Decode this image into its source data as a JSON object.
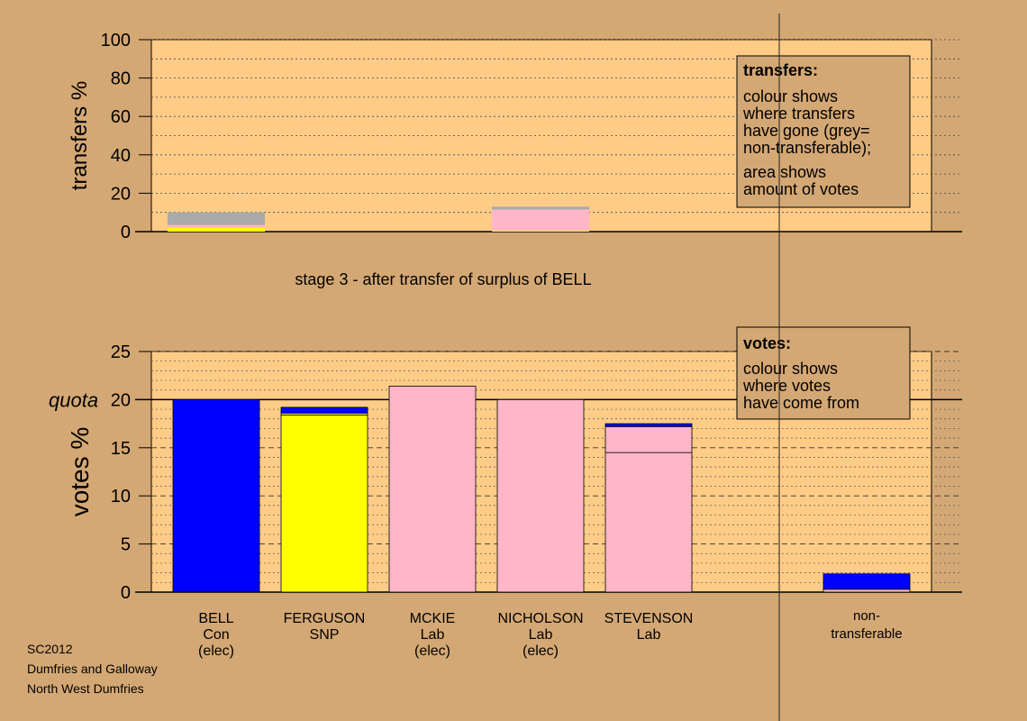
{
  "chart_data": [
    {
      "type": "bar",
      "stacked": true,
      "title": "stage 3 - after transfer of surplus of BELL",
      "ylabel": "transfers %",
      "ylim": [
        0,
        100
      ],
      "yticks": [
        0,
        20,
        40,
        60,
        80,
        100
      ],
      "categories": [
        "BELL",
        "MCKIE"
      ],
      "series": [
        {
          "color": "#ffff00",
          "values": [
            2,
            0.5
          ]
        },
        {
          "color": "#ffb6c8",
          "values": [
            1.5,
            11
          ]
        },
        {
          "color": "#aaaaaa",
          "values": [
            6.5,
            1.5
          ]
        }
      ],
      "legend_box": {
        "heading": "transfers:",
        "lines": [
          "colour shows",
          "where transfers",
          "have gone (grey=",
          "non-transferable);"
        ],
        "lines2": [
          "area shows",
          "amount of votes"
        ]
      }
    },
    {
      "type": "bar",
      "stacked": true,
      "ylabel": "votes %",
      "ylim": [
        0,
        25
      ],
      "yticks": [
        0,
        5,
        10,
        15,
        20,
        25
      ],
      "quota": {
        "value": 20,
        "label": "quota"
      },
      "candidates": [
        {
          "name": "BELL",
          "party": "Con",
          "status": "(elec)",
          "segments": [
            {
              "value": 20,
              "color": "#0000ff"
            }
          ]
        },
        {
          "name": "FERGUSON",
          "party": "SNP",
          "status": "",
          "segments": [
            {
              "value": 18.4,
              "color": "#ffff00"
            },
            {
              "value": 0.2,
              "color": "#ffff00"
            },
            {
              "value": 0.6,
              "color": "#0000ff"
            }
          ]
        },
        {
          "name": "MCKIE",
          "party": "Lab",
          "status": "(elec)",
          "segments": [
            {
              "value": 21.4,
              "color": "#ffb6c8"
            }
          ]
        },
        {
          "name": "NICHOLSON",
          "party": "Lab",
          "status": "(elec)",
          "segments": [
            {
              "value": 20,
              "color": "#ffb6c8"
            }
          ]
        },
        {
          "name": "STEVENSON",
          "party": "Lab",
          "status": "",
          "segments": [
            {
              "value": 14.5,
              "color": "#ffb6c8"
            },
            {
              "value": 2.7,
              "color": "#ffb6c8"
            },
            {
              "value": 0.3,
              "color": "#0000ff"
            }
          ]
        }
      ],
      "nontransferable": {
        "label1": "non-",
        "label2": "transferable",
        "segments": [
          {
            "value": 0.3,
            "color": "#ffb6c8"
          },
          {
            "value": 1.6,
            "color": "#0000ff"
          }
        ]
      },
      "legend_box": {
        "heading": "votes:",
        "lines": [
          "colour shows",
          "where votes",
          "have come from"
        ]
      }
    }
  ],
  "footer": {
    "line1": "SC2012",
    "line2": "Dumfries and Galloway",
    "line3": "North West Dumfries"
  },
  "colors": {
    "background": "#d4a874",
    "plot": "#ffcc88",
    "legend": "#d4a874"
  }
}
